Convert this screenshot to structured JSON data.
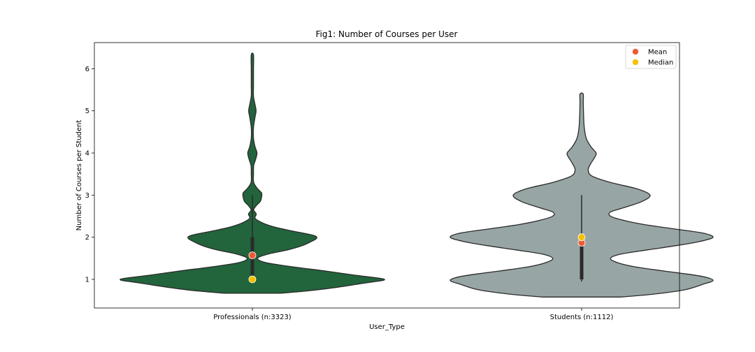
{
  "chart_data": {
    "type": "violin",
    "title": "Fig1: Number of Courses per User",
    "xlabel": "User_Type",
    "ylabel": "Number of Courses per Student",
    "ylim": [
      0.32,
      6.62
    ],
    "yticks": [
      1,
      2,
      3,
      4,
      5,
      6
    ],
    "categories": [
      "Professionals (n:3323)",
      "Students (n:1112)"
    ],
    "legend": {
      "position": "top-right",
      "entries": [
        {
          "label": "Mean",
          "color": "#f05a35"
        },
        {
          "label": "Median",
          "color": "#f5c000"
        }
      ]
    },
    "violins": [
      {
        "category": "Professionals (n:3323)",
        "color": "#22643c",
        "range": [
          0.67,
          6.33
        ],
        "whisker": [
          0.95,
          3.0
        ],
        "box": [
          1.0,
          2.0
        ],
        "mean": 1.57,
        "median": 1.0,
        "density": [
          [
            0.67,
            0.21
          ],
          [
            0.72,
            0.4
          ],
          [
            0.8,
            0.62
          ],
          [
            0.9,
            0.83
          ],
          [
            0.95,
            0.94
          ],
          [
            0.98,
            1.0
          ],
          [
            1.02,
            0.98
          ],
          [
            1.1,
            0.78
          ],
          [
            1.2,
            0.55
          ],
          [
            1.3,
            0.3
          ],
          [
            1.4,
            0.1
          ],
          [
            1.5,
            0.04
          ],
          [
            1.6,
            0.12
          ],
          [
            1.7,
            0.27
          ],
          [
            1.8,
            0.38
          ],
          [
            1.9,
            0.45
          ],
          [
            1.98,
            0.49
          ],
          [
            2.05,
            0.46
          ],
          [
            2.15,
            0.3
          ],
          [
            2.25,
            0.16
          ],
          [
            2.35,
            0.07
          ],
          [
            2.45,
            0.02
          ],
          [
            2.55,
            0.03
          ],
          [
            2.65,
            0.01
          ],
          [
            2.75,
            0.03
          ],
          [
            2.85,
            0.06
          ],
          [
            2.95,
            0.07
          ],
          [
            3.05,
            0.07
          ],
          [
            3.15,
            0.04
          ],
          [
            3.3,
            0.01
          ],
          [
            3.5,
            0.004
          ],
          [
            3.7,
            0.01
          ],
          [
            3.85,
            0.025
          ],
          [
            4.0,
            0.035
          ],
          [
            4.15,
            0.02
          ],
          [
            4.35,
            0.006
          ],
          [
            4.6,
            0.007
          ],
          [
            4.85,
            0.02
          ],
          [
            5.0,
            0.028
          ],
          [
            5.15,
            0.02
          ],
          [
            5.35,
            0.006
          ],
          [
            5.6,
            0.004
          ],
          [
            6.0,
            0.003
          ],
          [
            6.33,
            0.003
          ]
        ]
      },
      {
        "category": "Students (n:1112)",
        "color": "#98a5a5",
        "range": [
          0.58,
          5.4
        ],
        "whisker": [
          0.95,
          3.0
        ],
        "box": [
          1.0,
          2.0
        ],
        "mean": 1.87,
        "median": 2.0,
        "density": [
          [
            0.58,
            0.3
          ],
          [
            0.65,
            0.55
          ],
          [
            0.75,
            0.78
          ],
          [
            0.88,
            0.92
          ],
          [
            0.98,
            1.0
          ],
          [
            1.08,
            0.9
          ],
          [
            1.2,
            0.62
          ],
          [
            1.3,
            0.4
          ],
          [
            1.4,
            0.27
          ],
          [
            1.5,
            0.22
          ],
          [
            1.6,
            0.3
          ],
          [
            1.7,
            0.5
          ],
          [
            1.8,
            0.72
          ],
          [
            1.9,
            0.9
          ],
          [
            2.0,
            1.0
          ],
          [
            2.1,
            0.92
          ],
          [
            2.2,
            0.7
          ],
          [
            2.3,
            0.48
          ],
          [
            2.4,
            0.32
          ],
          [
            2.5,
            0.22
          ],
          [
            2.6,
            0.22
          ],
          [
            2.7,
            0.32
          ],
          [
            2.85,
            0.46
          ],
          [
            3.0,
            0.52
          ],
          [
            3.15,
            0.42
          ],
          [
            3.3,
            0.22
          ],
          [
            3.45,
            0.08
          ],
          [
            3.6,
            0.05
          ],
          [
            3.75,
            0.07
          ],
          [
            3.9,
            0.1
          ],
          [
            4.0,
            0.11
          ],
          [
            4.15,
            0.07
          ],
          [
            4.35,
            0.035
          ],
          [
            4.6,
            0.02
          ],
          [
            4.9,
            0.015
          ],
          [
            5.2,
            0.012
          ],
          [
            5.4,
            0.012
          ]
        ]
      }
    ]
  }
}
